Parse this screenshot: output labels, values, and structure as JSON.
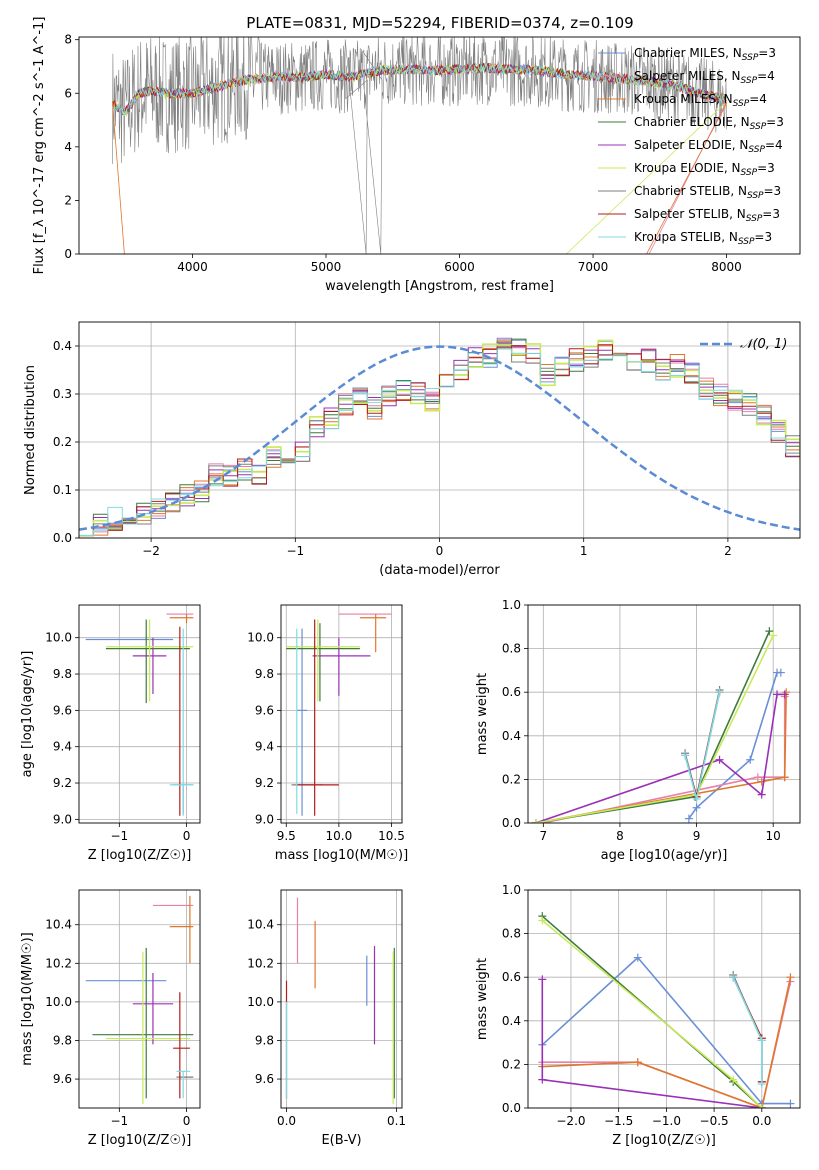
{
  "figure_title": "PLATE=0831, MJD=52294, FIBERID=0374, z=0.109",
  "colors": {
    "ch_miles": "#6b8fd6",
    "sa_miles": "#e87fa8",
    "kr_miles": "#e0772f",
    "ch_elodie": "#3f7a3f",
    "sa_elodie": "#9b30b8",
    "kr_elodie": "#c9ea5a",
    "ch_stelib": "#7f7f7f",
    "sa_stelib": "#b21c1c",
    "kr_stelib": "#7fdbe3"
  },
  "chart_data": [
    {
      "id": "spectrum",
      "type": "line",
      "title": "PLATE=0831, MJD=52294, FIBERID=0374, z=0.109",
      "xlabel": "wavelength [Angstrom, rest frame]",
      "ylabel": "Flux [f_λ 10^-17 erg cm^-2 s^-1 A^-1]",
      "xlim": [
        3150,
        8550
      ],
      "ylim": [
        0,
        8.1
      ],
      "xticks": [
        4000,
        5000,
        6000,
        7000,
        8000
      ],
      "yticks": [
        0,
        2,
        4,
        6,
        8
      ],
      "grid": false,
      "legend_position": "top-right",
      "legend": [
        {
          "key": "ch_miles",
          "label": "Chabrier MILES, N",
          "sub": "SSP",
          "suffix": "=3"
        },
        {
          "key": "sa_miles",
          "label": "Salpeter MILES, N",
          "sub": "SSP",
          "suffix": "=4"
        },
        {
          "key": "kr_miles",
          "label": "Kroupa MILES, N",
          "sub": "SSP",
          "suffix": "=4"
        },
        {
          "key": "ch_elodie",
          "label": "Chabrier ELODIE, N",
          "sub": "SSP",
          "suffix": "=3"
        },
        {
          "key": "sa_elodie",
          "label": "Salpeter ELODIE, N",
          "sub": "SSP",
          "suffix": "=4"
        },
        {
          "key": "kr_elodie",
          "label": "Kroupa ELODIE, N",
          "sub": "SSP",
          "suffix": "=3"
        },
        {
          "key": "ch_stelib",
          "label": "Chabrier STELIB, N",
          "sub": "SSP",
          "suffix": "=3"
        },
        {
          "key": "sa_stelib",
          "label": "Salpeter STELIB, N",
          "sub": "SSP",
          "suffix": "=3"
        },
        {
          "key": "kr_stelib",
          "label": "Kroupa STELIB, N",
          "sub": "SSP",
          "suffix": "=3"
        }
      ],
      "continuum": [
        [
          3400,
          5.6
        ],
        [
          3500,
          5.3
        ],
        [
          3600,
          6.0
        ],
        [
          3700,
          6.1
        ],
        [
          3800,
          6.0
        ],
        [
          3900,
          6.0
        ],
        [
          4000,
          6.0
        ],
        [
          4200,
          6.25
        ],
        [
          4400,
          6.5
        ],
        [
          4600,
          6.6
        ],
        [
          4800,
          6.6
        ],
        [
          5000,
          6.7
        ],
        [
          5200,
          6.6
        ],
        [
          5400,
          6.85
        ],
        [
          5600,
          6.9
        ],
        [
          5800,
          6.85
        ],
        [
          6000,
          6.9
        ],
        [
          6200,
          6.95
        ],
        [
          6400,
          6.9
        ],
        [
          6600,
          6.85
        ],
        [
          6800,
          6.7
        ],
        [
          7000,
          6.65
        ],
        [
          7200,
          6.55
        ],
        [
          7400,
          6.45
        ],
        [
          7600,
          6.3
        ],
        [
          7800,
          6.0
        ],
        [
          8000,
          5.75
        ]
      ]
    },
    {
      "id": "residuals",
      "type": "histogram",
      "xlabel": "(data-model)/error",
      "ylabel": "Normed distribution",
      "xlim": [
        -2.5,
        2.5
      ],
      "ylim": [
        0,
        0.45
      ],
      "xticks": [
        -2,
        -1,
        0,
        1,
        2
      ],
      "yticks": [
        0.0,
        0.1,
        0.2,
        0.3,
        0.4
      ],
      "grid": true,
      "legend_position": "top-right",
      "legend": "𝒩(0, 1)",
      "bin_width": 0.1,
      "bin_start": -2.5,
      "values": [
        0.03,
        0.03,
        0.04,
        0.05,
        0.05,
        0.06,
        0.07,
        0.09,
        0.1,
        0.13,
        0.13,
        0.14,
        0.13,
        0.17,
        0.17,
        0.18,
        0.23,
        0.25,
        0.28,
        0.3,
        0.27,
        0.3,
        0.31,
        0.3,
        0.29,
        0.33,
        0.35,
        0.38,
        0.38,
        0.4,
        0.39,
        0.38,
        0.34,
        0.36,
        0.37,
        0.38,
        0.39,
        0.39,
        0.37,
        0.37,
        0.35,
        0.36,
        0.34,
        0.31,
        0.3,
        0.29,
        0.28,
        0.26,
        0.22,
        0.19,
        0.18,
        0.16,
        0.15,
        0.14,
        0.13,
        0.11,
        0.1,
        0.1,
        0.09,
        0.08,
        0.07,
        0.07,
        0.06,
        0.06,
        0.05,
        0.04,
        0.04,
        0.04,
        0.03,
        0.03
      ],
      "normal_curve": true
    },
    {
      "id": "age_vs_Z",
      "type": "errorbar",
      "xlabel": "Z [log10(Z/Z☉)]",
      "ylabel": "age  [log10(age/yr)]",
      "xlim": [
        -1.6,
        0.2
      ],
      "ylim": [
        8.98,
        10.18
      ],
      "xticks": [
        -1,
        0
      ],
      "yticks": [
        9.0,
        9.2,
        9.4,
        9.6,
        9.8,
        10.0
      ],
      "grid": true,
      "points": [
        {
          "key": "ch_miles",
          "x": -0.85,
          "xlo": -1.5,
          "xhi": -0.2,
          "y": 9.99,
          "ylo": 9.99,
          "yhi": 9.99
        },
        {
          "key": "ch_miles",
          "x": -0.05,
          "xlo": -0.2,
          "xhi": 0.1,
          "y": 9.19,
          "ylo": 9.03,
          "yhi": 9.19
        },
        {
          "key": "sa_miles",
          "x": 0.05,
          "xlo": -0.3,
          "xhi": 0.1,
          "y": 10.13,
          "ylo": 10.13,
          "yhi": 10.13
        },
        {
          "key": "kr_miles",
          "x": 0.0,
          "xlo": -0.25,
          "xhi": 0.1,
          "y": 10.11,
          "ylo": 10.08,
          "yhi": 10.13
        },
        {
          "key": "ch_elodie",
          "x": -0.6,
          "xlo": -1.2,
          "xhi": 0.05,
          "y": 9.94,
          "ylo": 9.64,
          "yhi": 10.1
        },
        {
          "key": "sa_elodie",
          "x": -0.5,
          "xlo": -0.8,
          "xhi": -0.3,
          "y": 9.9,
          "ylo": 9.69,
          "yhi": 10.0
        },
        {
          "key": "kr_elodie",
          "x": -0.55,
          "xlo": -1.2,
          "xhi": 0.1,
          "y": 9.95,
          "ylo": 9.65,
          "yhi": 10.1
        },
        {
          "key": "sa_stelib",
          "x": -0.1,
          "xlo": -0.1,
          "xhi": -0.1,
          "y": 9.5,
          "ylo": 9.02,
          "yhi": 10.06
        },
        {
          "key": "kr_stelib",
          "x": -0.05,
          "xlo": -0.25,
          "xhi": 0.1,
          "y": 9.19,
          "ylo": 9.02,
          "yhi": 10.05
        }
      ]
    },
    {
      "id": "age_vs_mass",
      "type": "errorbar",
      "xlabel": "mass [log10(M/M☉)]",
      "ylabel": "",
      "xlim": [
        9.45,
        10.6
      ],
      "ylim": [
        8.98,
        10.18
      ],
      "xticks": [
        9.5,
        10.0,
        10.5
      ],
      "yticks": [
        9.0,
        9.2,
        9.4,
        9.6,
        9.8,
        10.0
      ],
      "grid": true,
      "points": [
        {
          "key": "ch_miles",
          "x": 9.65,
          "xlo": 9.6,
          "xhi": 9.7,
          "y": 9.6,
          "ylo": 9.02,
          "yhi": 10.05
        },
        {
          "key": "sa_miles",
          "x": 10.2,
          "xlo": 10.0,
          "xhi": 10.5,
          "y": 10.13,
          "ylo": 10.13,
          "yhi": 10.13
        },
        {
          "key": "kr_miles",
          "x": 10.35,
          "xlo": 10.2,
          "xhi": 10.45,
          "y": 10.11,
          "ylo": 9.92,
          "yhi": 10.13
        },
        {
          "key": "ch_elodie",
          "x": 9.82,
          "xlo": 9.5,
          "xhi": 10.2,
          "y": 9.94,
          "ylo": 9.65,
          "yhi": 10.08
        },
        {
          "key": "sa_elodie",
          "x": 10.0,
          "xlo": 9.75,
          "xhi": 10.3,
          "y": 9.9,
          "ylo": 9.68,
          "yhi": 10.0
        },
        {
          "key": "kr_elodie",
          "x": 9.8,
          "xlo": 9.5,
          "xhi": 10.2,
          "y": 9.95,
          "ylo": 9.65,
          "yhi": 10.1
        },
        {
          "key": "ch_stelib",
          "x": 9.65,
          "xlo": 9.55,
          "xhi": 9.85,
          "y": 9.19,
          "ylo": 9.19,
          "yhi": 9.19
        },
        {
          "key": "sa_stelib",
          "x": 9.77,
          "xlo": 9.6,
          "xhi": 10.0,
          "y": 9.19,
          "ylo": 9.02,
          "yhi": 10.1
        },
        {
          "key": "kr_stelib",
          "x": 9.6,
          "xlo": 9.6,
          "xhi": 9.6,
          "y": 9.6,
          "ylo": 9.03,
          "yhi": 10.05
        }
      ]
    },
    {
      "id": "weight_vs_age",
      "type": "line",
      "xlabel": "age  [log10(age/yr)]",
      "ylabel": "mass weight",
      "xlim": [
        6.8,
        10.35
      ],
      "ylim": [
        0,
        1.0
      ],
      "xticks": [
        7,
        8,
        9,
        10
      ],
      "yticks": [
        0.0,
        0.2,
        0.4,
        0.6,
        0.8,
        1.0
      ],
      "grid": true,
      "series": [
        {
          "key": "ch_miles",
          "x": [
            8.9,
            9.0,
            9.7,
            10.05,
            10.1
          ],
          "y": [
            0.02,
            0.07,
            0.29,
            0.69,
            0.69
          ]
        },
        {
          "key": "sa_miles",
          "x": [
            7.0,
            9.8,
            10.15,
            10.15
          ],
          "y": [
            0.0,
            0.21,
            0.21,
            0.58
          ]
        },
        {
          "key": "kr_miles",
          "x": [
            6.9,
            9.85,
            10.15,
            10.17
          ],
          "y": [
            0.0,
            0.19,
            0.21,
            0.6
          ]
        },
        {
          "key": "ch_elodie",
          "x": [
            6.9,
            8.98,
            9.95
          ],
          "y": [
            0.0,
            0.12,
            0.88
          ]
        },
        {
          "key": "sa_elodie",
          "x": [
            6.9,
            9.3,
            9.85,
            10.05,
            10.15
          ],
          "y": [
            0.0,
            0.29,
            0.13,
            0.59,
            0.59
          ]
        },
        {
          "key": "kr_elodie",
          "x": [
            6.9,
            9.0,
            10.0
          ],
          "y": [
            0.0,
            0.13,
            0.86
          ]
        },
        {
          "key": "ch_stelib",
          "x": [
            8.85,
            9.0,
            9.3
          ],
          "y": [
            0.32,
            0.12,
            0.61
          ]
        },
        {
          "key": "sa_stelib",
          "x": [
            8.85,
            9.0,
            9.3
          ],
          "y": [
            0.31,
            0.12,
            0.6
          ]
        },
        {
          "key": "kr_stelib",
          "x": [
            8.85,
            9.0,
            9.3
          ],
          "y": [
            0.31,
            0.11,
            0.6
          ]
        }
      ]
    },
    {
      "id": "mass_vs_Z",
      "type": "errorbar",
      "xlabel": "Z [log10(Z/Z☉)]",
      "ylabel": "mass [log10(M/M☉)]",
      "xlim": [
        -1.6,
        0.2
      ],
      "ylim": [
        9.45,
        10.58
      ],
      "xticks": [
        -1,
        0
      ],
      "yticks": [
        9.6,
        9.8,
        10.0,
        10.2,
        10.4
      ],
      "grid": true,
      "points": [
        {
          "key": "ch_miles",
          "x": -0.9,
          "xlo": -1.5,
          "xhi": -0.3,
          "y": 10.11,
          "ylo": 10.11,
          "yhi": 10.11
        },
        {
          "key": "sa_miles",
          "x": -0.2,
          "xlo": -0.5,
          "xhi": 0.1,
          "y": 10.5,
          "ylo": 10.5,
          "yhi": 10.5
        },
        {
          "key": "kr_miles",
          "x": 0.05,
          "xlo": -0.25,
          "xhi": 0.1,
          "y": 10.39,
          "ylo": 10.2,
          "yhi": 10.55
        },
        {
          "key": "ch_elodie",
          "x": -0.6,
          "xlo": -1.4,
          "xhi": 0.1,
          "y": 9.83,
          "ylo": 9.5,
          "yhi": 10.28
        },
        {
          "key": "sa_elodie",
          "x": -0.5,
          "xlo": -0.8,
          "xhi": -0.2,
          "y": 9.99,
          "ylo": 9.78,
          "yhi": 10.15
        },
        {
          "key": "kr_elodie",
          "x": -0.65,
          "xlo": -1.2,
          "xhi": 0.05,
          "y": 9.81,
          "ylo": 9.47,
          "yhi": 10.26
        },
        {
          "key": "ch_stelib",
          "x": -0.05,
          "xlo": -0.15,
          "xhi": 0.1,
          "y": 9.61,
          "ylo": 9.61,
          "yhi": 9.61
        },
        {
          "key": "sa_stelib",
          "x": -0.1,
          "xlo": -0.2,
          "xhi": 0.05,
          "y": 9.76,
          "ylo": 9.5,
          "yhi": 10.05
        },
        {
          "key": "kr_stelib",
          "x": -0.05,
          "xlo": -0.15,
          "xhi": 0.05,
          "y": 9.64,
          "ylo": 9.5,
          "yhi": 9.64
        }
      ]
    },
    {
      "id": "mass_vs_ebv",
      "type": "errorbar",
      "xlabel": "E(B-V)",
      "ylabel": "",
      "xlim": [
        -0.005,
        0.105
      ],
      "ylim": [
        9.45,
        10.58
      ],
      "xticks": [
        0.0,
        0.1
      ],
      "yticks": [
        9.6,
        9.8,
        10.0,
        10.2,
        10.4
      ],
      "grid": true,
      "points": [
        {
          "key": "ch_miles",
          "x": 0.073,
          "xlo": 0.073,
          "xhi": 0.073,
          "y": 10.1,
          "ylo": 9.98,
          "yhi": 10.24
        },
        {
          "key": "sa_miles",
          "x": 0.01,
          "xlo": 0.01,
          "xhi": 0.01,
          "y": 10.4,
          "ylo": 10.2,
          "yhi": 10.54
        },
        {
          "key": "kr_miles",
          "x": 0.026,
          "xlo": 0.026,
          "xhi": 0.026,
          "y": 10.25,
          "ylo": 10.07,
          "yhi": 10.42
        },
        {
          "key": "ch_elodie",
          "x": 0.098,
          "xlo": 0.098,
          "xhi": 0.098,
          "y": 9.8,
          "ylo": 9.5,
          "yhi": 10.28
        },
        {
          "key": "sa_elodie",
          "x": 0.08,
          "xlo": 0.08,
          "xhi": 0.08,
          "y": 9.99,
          "ylo": 9.78,
          "yhi": 10.29
        },
        {
          "key": "kr_elodie",
          "x": 0.097,
          "xlo": 0.097,
          "xhi": 0.097,
          "y": 9.81,
          "ylo": 9.47,
          "yhi": 10.26
        },
        {
          "key": "sa_stelib",
          "x": 0.0,
          "xlo": 0.0,
          "xhi": 0.0,
          "y": 9.8,
          "ylo": 9.5,
          "yhi": 10.11
        },
        {
          "key": "kr_stelib",
          "x": 0.0,
          "xlo": 0.0,
          "xhi": 0.0,
          "y": 9.7,
          "ylo": 9.5,
          "yhi": 10.0
        }
      ]
    },
    {
      "id": "weight_vs_Z",
      "type": "line",
      "xlabel": "Z [log10(Z/Z☉)]",
      "ylabel": "mass weight",
      "xlim": [
        -2.45,
        0.4
      ],
      "ylim": [
        0,
        1.0
      ],
      "xticks": [
        -2.0,
        -1.5,
        -1.0,
        -0.5,
        0.0
      ],
      "yticks": [
        0.0,
        0.2,
        0.4,
        0.6,
        0.8,
        1.0
      ],
      "grid": true,
      "series": [
        {
          "key": "ch_miles",
          "x": [
            -2.3,
            -1.3,
            0.0,
            0.3
          ],
          "y": [
            0.29,
            0.69,
            0.02,
            0.02
          ]
        },
        {
          "key": "sa_miles",
          "x": [
            -2.3,
            -1.3,
            0.0,
            0.3
          ],
          "y": [
            0.21,
            0.21,
            0.0,
            0.58
          ]
        },
        {
          "key": "kr_miles",
          "x": [
            -2.3,
            -1.3,
            0.0,
            0.3
          ],
          "y": [
            0.19,
            0.21,
            0.0,
            0.6
          ]
        },
        {
          "key": "ch_elodie",
          "x": [
            -2.3,
            -0.3,
            0.0
          ],
          "y": [
            0.88,
            0.12,
            0.0
          ]
        },
        {
          "key": "sa_elodie",
          "x": [
            -2.3,
            -2.3,
            0.0
          ],
          "y": [
            0.59,
            0.13,
            0.0
          ]
        },
        {
          "key": "kr_elodie",
          "x": [
            -2.3,
            -0.3,
            0.0
          ],
          "y": [
            0.86,
            0.13,
            0.0
          ]
        },
        {
          "key": "ch_stelib",
          "x": [
            -0.3,
            0.0,
            0.0
          ],
          "y": [
            0.61,
            0.31,
            0.12
          ]
        },
        {
          "key": "sa_stelib",
          "x": [
            -0.3,
            0.0,
            0.0
          ],
          "y": [
            0.6,
            0.32,
            0.12
          ]
        },
        {
          "key": "kr_stelib",
          "x": [
            -0.3,
            0.0,
            0.0
          ],
          "y": [
            0.6,
            0.31,
            0.11
          ]
        }
      ]
    }
  ]
}
